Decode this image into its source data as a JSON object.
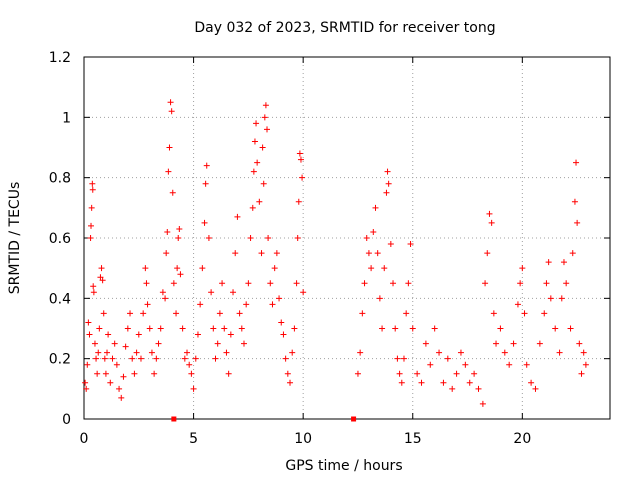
{
  "chart_data": {
    "type": "scatter",
    "title": "Day 032 of 2023, SRMTID for receiver tong",
    "xlabel": "GPS time / hours",
    "ylabel": "SRMTID / TECUs",
    "xlim": [
      0,
      24
    ],
    "ylim": [
      0,
      1.2
    ],
    "x_ticks": [
      0,
      5,
      10,
      15,
      20
    ],
    "x_tick_labels": [
      "0",
      "5",
      "10",
      "15",
      "20"
    ],
    "y_ticks": [
      0,
      0.2,
      0.4,
      0.6,
      0.8,
      1.0,
      1.2
    ],
    "y_tick_labels": [
      "0",
      "0.2",
      "0.4",
      "0.6",
      "0.8",
      "1",
      "1.2"
    ],
    "grid": true,
    "marker": "+",
    "color": "#ff0000",
    "series": [
      {
        "name": "SRMTID",
        "points": [
          [
            0.05,
            0.12
          ],
          [
            0.1,
            0.1
          ],
          [
            0.15,
            0.18
          ],
          [
            0.2,
            0.32
          ],
          [
            0.25,
            0.28
          ],
          [
            0.3,
            0.6
          ],
          [
            0.32,
            0.64
          ],
          [
            0.35,
            0.7
          ],
          [
            0.38,
            0.78
          ],
          [
            0.4,
            0.76
          ],
          [
            0.42,
            0.44
          ],
          [
            0.45,
            0.42
          ],
          [
            0.5,
            0.25
          ],
          [
            0.55,
            0.2
          ],
          [
            0.6,
            0.15
          ],
          [
            0.65,
            0.22
          ],
          [
            0.7,
            0.3
          ],
          [
            0.75,
            0.47
          ],
          [
            0.8,
            0.5
          ],
          [
            0.85,
            0.46
          ],
          [
            0.9,
            0.35
          ],
          [
            0.95,
            0.2
          ],
          [
            1.0,
            0.15
          ],
          [
            1.05,
            0.22
          ],
          [
            1.1,
            0.28
          ],
          [
            1.2,
            0.12
          ],
          [
            1.3,
            0.2
          ],
          [
            1.4,
            0.25
          ],
          [
            1.5,
            0.18
          ],
          [
            1.6,
            0.1
          ],
          [
            1.7,
            0.07
          ],
          [
            1.8,
            0.14
          ],
          [
            1.9,
            0.24
          ],
          [
            2.0,
            0.3
          ],
          [
            2.1,
            0.35
          ],
          [
            2.2,
            0.2
          ],
          [
            2.3,
            0.15
          ],
          [
            2.4,
            0.22
          ],
          [
            2.5,
            0.28
          ],
          [
            2.6,
            0.2
          ],
          [
            2.7,
            0.35
          ],
          [
            2.8,
            0.5
          ],
          [
            2.85,
            0.45
          ],
          [
            2.9,
            0.38
          ],
          [
            3.0,
            0.3
          ],
          [
            3.1,
            0.22
          ],
          [
            3.2,
            0.15
          ],
          [
            3.3,
            0.2
          ],
          [
            3.4,
            0.25
          ],
          [
            3.5,
            0.3
          ],
          [
            3.6,
            0.42
          ],
          [
            3.7,
            0.4
          ],
          [
            3.75,
            0.55
          ],
          [
            3.8,
            0.62
          ],
          [
            3.85,
            0.82
          ],
          [
            3.9,
            0.9
          ],
          [
            3.95,
            1.05
          ],
          [
            4.0,
            1.02
          ],
          [
            4.05,
            0.75
          ],
          [
            4.1,
            0.45
          ],
          [
            4.2,
            0.35
          ],
          [
            4.25,
            0.5
          ],
          [
            4.3,
            0.6
          ],
          [
            4.35,
            0.63
          ],
          [
            4.4,
            0.48
          ],
          [
            4.5,
            0.3
          ],
          [
            4.6,
            0.2
          ],
          [
            4.7,
            0.22
          ],
          [
            4.8,
            0.18
          ],
          [
            4.9,
            0.15
          ],
          [
            5.0,
            0.1
          ],
          [
            5.1,
            0.2
          ],
          [
            5.2,
            0.28
          ],
          [
            5.3,
            0.38
          ],
          [
            5.4,
            0.5
          ],
          [
            5.5,
            0.65
          ],
          [
            5.55,
            0.78
          ],
          [
            5.6,
            0.84
          ],
          [
            5.7,
            0.6
          ],
          [
            5.8,
            0.42
          ],
          [
            5.9,
            0.3
          ],
          [
            6.0,
            0.2
          ],
          [
            6.1,
            0.25
          ],
          [
            6.2,
            0.35
          ],
          [
            6.3,
            0.45
          ],
          [
            6.4,
            0.3
          ],
          [
            6.5,
            0.22
          ],
          [
            6.6,
            0.15
          ],
          [
            6.7,
            0.28
          ],
          [
            6.8,
            0.42
          ],
          [
            6.9,
            0.55
          ],
          [
            7.0,
            0.67
          ],
          [
            7.1,
            0.35
          ],
          [
            7.2,
            0.3
          ],
          [
            7.3,
            0.25
          ],
          [
            7.4,
            0.38
          ],
          [
            7.5,
            0.45
          ],
          [
            7.6,
            0.6
          ],
          [
            7.7,
            0.7
          ],
          [
            7.75,
            0.82
          ],
          [
            7.8,
            0.92
          ],
          [
            7.85,
            0.98
          ],
          [
            7.9,
            0.85
          ],
          [
            8.0,
            0.72
          ],
          [
            8.1,
            0.55
          ],
          [
            8.15,
            0.9
          ],
          [
            8.2,
            0.78
          ],
          [
            8.25,
            1.0
          ],
          [
            8.3,
            1.04
          ],
          [
            8.35,
            0.96
          ],
          [
            8.4,
            0.6
          ],
          [
            8.5,
            0.45
          ],
          [
            8.6,
            0.38
          ],
          [
            8.7,
            0.5
          ],
          [
            8.8,
            0.55
          ],
          [
            8.9,
            0.4
          ],
          [
            9.0,
            0.32
          ],
          [
            9.1,
            0.28
          ],
          [
            9.2,
            0.2
          ],
          [
            9.3,
            0.15
          ],
          [
            9.4,
            0.12
          ],
          [
            9.5,
            0.22
          ],
          [
            9.6,
            0.3
          ],
          [
            9.7,
            0.45
          ],
          [
            9.75,
            0.6
          ],
          [
            9.8,
            0.72
          ],
          [
            9.85,
            0.88
          ],
          [
            9.9,
            0.86
          ],
          [
            9.95,
            0.8
          ],
          [
            10.0,
            0.42
          ],
          [
            12.5,
            0.15
          ],
          [
            12.6,
            0.22
          ],
          [
            12.7,
            0.35
          ],
          [
            12.8,
            0.45
          ],
          [
            12.9,
            0.6
          ],
          [
            13.0,
            0.55
          ],
          [
            13.1,
            0.5
          ],
          [
            13.2,
            0.62
          ],
          [
            13.3,
            0.7
          ],
          [
            13.4,
            0.55
          ],
          [
            13.5,
            0.4
          ],
          [
            13.6,
            0.3
          ],
          [
            13.7,
            0.5
          ],
          [
            13.8,
            0.75
          ],
          [
            13.85,
            0.82
          ],
          [
            13.9,
            0.78
          ],
          [
            14.0,
            0.58
          ],
          [
            14.1,
            0.45
          ],
          [
            14.2,
            0.3
          ],
          [
            14.3,
            0.2
          ],
          [
            14.4,
            0.15
          ],
          [
            14.5,
            0.12
          ],
          [
            14.6,
            0.2
          ],
          [
            14.7,
            0.35
          ],
          [
            14.8,
            0.45
          ],
          [
            14.9,
            0.58
          ],
          [
            15.0,
            0.3
          ],
          [
            15.2,
            0.15
          ],
          [
            15.4,
            0.12
          ],
          [
            15.6,
            0.25
          ],
          [
            15.8,
            0.18
          ],
          [
            16.0,
            0.3
          ],
          [
            16.2,
            0.22
          ],
          [
            16.4,
            0.12
          ],
          [
            16.6,
            0.2
          ],
          [
            16.8,
            0.1
          ],
          [
            17.0,
            0.15
          ],
          [
            17.2,
            0.22
          ],
          [
            17.4,
            0.18
          ],
          [
            17.6,
            0.12
          ],
          [
            17.8,
            0.15
          ],
          [
            18.0,
            0.1
          ],
          [
            18.2,
            0.05
          ],
          [
            18.3,
            0.45
          ],
          [
            18.4,
            0.55
          ],
          [
            18.5,
            0.68
          ],
          [
            18.6,
            0.65
          ],
          [
            18.7,
            0.35
          ],
          [
            18.8,
            0.25
          ],
          [
            19.0,
            0.3
          ],
          [
            19.2,
            0.22
          ],
          [
            19.4,
            0.18
          ],
          [
            19.6,
            0.25
          ],
          [
            19.8,
            0.38
          ],
          [
            19.9,
            0.45
          ],
          [
            20.0,
            0.5
          ],
          [
            20.1,
            0.35
          ],
          [
            20.2,
            0.18
          ],
          [
            20.4,
            0.12
          ],
          [
            20.6,
            0.1
          ],
          [
            20.8,
            0.25
          ],
          [
            21.0,
            0.35
          ],
          [
            21.1,
            0.45
          ],
          [
            21.2,
            0.52
          ],
          [
            21.3,
            0.4
          ],
          [
            21.5,
            0.3
          ],
          [
            21.7,
            0.22
          ],
          [
            21.8,
            0.4
          ],
          [
            21.9,
            0.52
          ],
          [
            22.0,
            0.45
          ],
          [
            22.2,
            0.3
          ],
          [
            22.3,
            0.55
          ],
          [
            22.4,
            0.72
          ],
          [
            22.45,
            0.85
          ],
          [
            22.5,
            0.65
          ],
          [
            22.6,
            0.25
          ],
          [
            22.7,
            0.15
          ],
          [
            22.8,
            0.22
          ],
          [
            22.9,
            0.18
          ]
        ]
      }
    ],
    "markers": [
      {
        "name": "gap-marker",
        "points": [
          [
            4.1,
            0.0
          ],
          [
            12.3,
            0.0
          ]
        ],
        "symbol": "square"
      }
    ]
  }
}
